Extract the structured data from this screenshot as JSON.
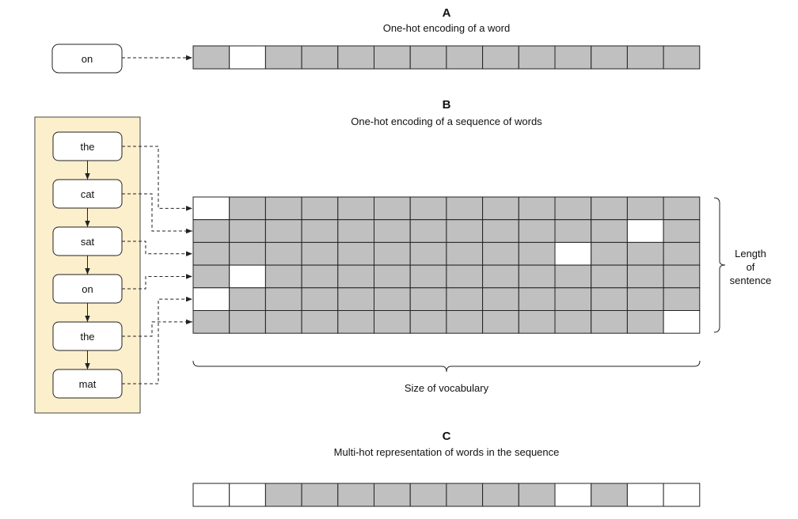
{
  "colors": {
    "hot": "#ffffff",
    "cold": "#c0c0c0",
    "panel": "#fcefcc",
    "panel_border": "#444444"
  },
  "section_a": {
    "letter": "A",
    "title": "One-hot encoding of a word",
    "word": "on",
    "vector": [
      0,
      1,
      0,
      0,
      0,
      0,
      0,
      0,
      0,
      0,
      0,
      0,
      0,
      0
    ]
  },
  "section_b": {
    "letter": "B",
    "title": "One-hot encoding of a sequence of words",
    "words": [
      "the",
      "cat",
      "sat",
      "on",
      "the",
      "mat"
    ],
    "matrix": [
      [
        1,
        0,
        0,
        0,
        0,
        0,
        0,
        0,
        0,
        0,
        0,
        0,
        0,
        0
      ],
      [
        0,
        0,
        0,
        0,
        0,
        0,
        0,
        0,
        0,
        0,
        0,
        0,
        1,
        0
      ],
      [
        0,
        0,
        0,
        0,
        0,
        0,
        0,
        0,
        0,
        0,
        1,
        0,
        0,
        0
      ],
      [
        0,
        1,
        0,
        0,
        0,
        0,
        0,
        0,
        0,
        0,
        0,
        0,
        0,
        0
      ],
      [
        1,
        0,
        0,
        0,
        0,
        0,
        0,
        0,
        0,
        0,
        0,
        0,
        0,
        0
      ],
      [
        0,
        0,
        0,
        0,
        0,
        0,
        0,
        0,
        0,
        0,
        0,
        0,
        0,
        1
      ]
    ],
    "arrow_targets": [
      0,
      1,
      2,
      3,
      5,
      4
    ],
    "length_label": [
      "Length",
      "of",
      "sentence"
    ],
    "vocab_label": "Size of vocabulary"
  },
  "section_c": {
    "letter": "C",
    "title": "Multi-hot representation of words in the sequence",
    "vector": [
      1,
      1,
      0,
      0,
      0,
      0,
      0,
      0,
      0,
      0,
      1,
      0,
      1,
      1
    ]
  }
}
